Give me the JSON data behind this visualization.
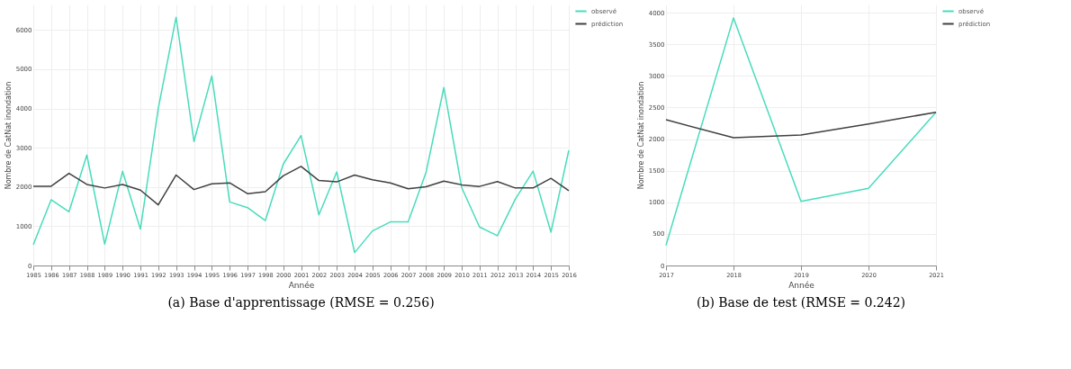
{
  "chart_data": [
    {
      "type": "line",
      "title": "(a) Base d'apprentissage (RMSE = 0.256)",
      "xlabel": "Année",
      "ylabel": "Nombre de CatNat inondation",
      "categories": [
        "1985",
        "1986",
        "1987",
        "1988",
        "1989",
        "1990",
        "1991",
        "1992",
        "1993",
        "1994",
        "1995",
        "1996",
        "1997",
        "1998",
        "2000",
        "2001",
        "2002",
        "2003",
        "2004",
        "2005",
        "2006",
        "2007",
        "2008",
        "2009",
        "2010",
        "2011",
        "2012",
        "2013",
        "2014",
        "2015",
        "2016"
      ],
      "series": [
        {
          "name": "observé",
          "color": "#48dcbc",
          "values": [
            530,
            1675,
            1370,
            2815,
            543,
            2400,
            927,
            4000,
            6325,
            3160,
            4830,
            1620,
            1475,
            1145,
            2580,
            3310,
            1290,
            2385,
            330,
            880,
            1110,
            1110,
            2365,
            4535,
            1985,
            980,
            760,
            1690,
            2405,
            850,
            2935
          ]
        },
        {
          "name": "prédiction",
          "color": "#404040",
          "values": [
            2020,
            2020,
            2350,
            2065,
            1975,
            2065,
            1920,
            1545,
            2305,
            1935,
            2080,
            2105,
            1830,
            1880,
            2285,
            2525,
            2165,
            2130,
            2305,
            2185,
            2105,
            1955,
            2005,
            2150,
            2055,
            2015,
            2140,
            1975,
            1975,
            2220,
            1905
          ]
        }
      ],
      "ylim": [
        0,
        6650
      ],
      "yticks": [
        0,
        1000,
        2000,
        3000,
        4000,
        5000,
        6000
      ],
      "grid": true,
      "legend": "top right"
    },
    {
      "type": "line",
      "title": "(b) Base de test (RMSE = 0.242)",
      "xlabel": "Année",
      "ylabel": "Nombre de CatNat inondation",
      "categories": [
        "2017",
        "2018",
        "2019",
        "2020",
        "2021"
      ],
      "series": [
        {
          "name": "observé",
          "color": "#48dcbc",
          "values": [
            320,
            3918,
            1015,
            1221,
            2425
          ]
        },
        {
          "name": "prédiction",
          "color": "#404040",
          "values": [
            2306,
            2023,
            2064,
            2240,
            2425
          ]
        }
      ],
      "ylim": [
        0,
        4130
      ],
      "yticks": [
        0,
        500,
        1000,
        1500,
        2000,
        2500,
        3000,
        3500,
        4000
      ],
      "grid": true,
      "legend": "top right"
    }
  ]
}
